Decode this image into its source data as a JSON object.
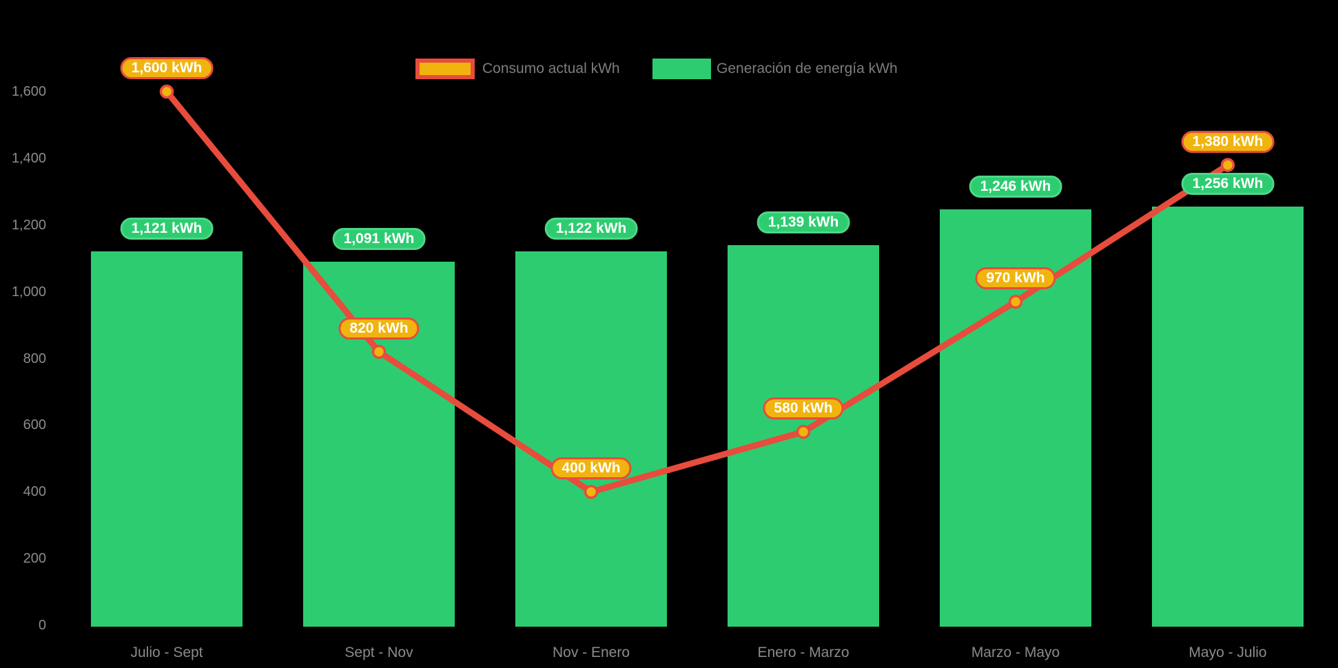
{
  "colors": {
    "background": "#000000",
    "bar_green": "#2ecc71",
    "green_pill_border": "#4dd788",
    "line_red": "#e74c3c",
    "point_gold": "#f1b40e",
    "axis_text": "#8b8b8b",
    "legend_text": "#7d7d7d"
  },
  "legend": {
    "items": [
      {
        "label": "Consumo actual kWh",
        "swatch": "orange-rect-red-border"
      },
      {
        "label": "Generación de energía kWh",
        "swatch": "green-rect"
      }
    ]
  },
  "chart_data": {
    "type": "bar+line",
    "title": "",
    "categories": [
      "Julio - Sept",
      "Sept - Nov",
      "Nov - Enero",
      "Enero - Marzo",
      "Marzo - Mayo",
      "Mayo - Julio"
    ],
    "series": [
      {
        "name": "Generación de energía kWh",
        "type": "bar",
        "values": [
          1121,
          1091,
          1122,
          1139,
          1246,
          1256
        ],
        "data_labels": [
          "1,121 kWh",
          "1,091 kWh",
          "1,122 kWh",
          "1,139 kWh",
          "1,246 kWh",
          "1,256 kWh"
        ]
      },
      {
        "name": "Consumo actual kWh",
        "type": "line",
        "values": [
          1600,
          820,
          400,
          580,
          970,
          1380
        ],
        "data_labels": [
          "1,600 kWh",
          "820 kWh",
          "400 kWh",
          "580 kWh",
          "970 kWh",
          "1,380 kWh"
        ]
      }
    ],
    "y_axis": {
      "min": 0,
      "max": 1600,
      "step": 200,
      "ticks": [
        {
          "value": 1600,
          "label": "1,600"
        },
        {
          "value": 1400,
          "label": "1,400"
        },
        {
          "value": 1200,
          "label": "1,200"
        },
        {
          "value": 1000,
          "label": "1,000"
        },
        {
          "value": 800,
          "label": "800"
        },
        {
          "value": 600,
          "label": "600"
        },
        {
          "value": 400,
          "label": "400"
        },
        {
          "value": 200,
          "label": "200"
        },
        {
          "value": 0,
          "label": "0"
        }
      ]
    },
    "grid": false,
    "legend_position": "top-center"
  }
}
